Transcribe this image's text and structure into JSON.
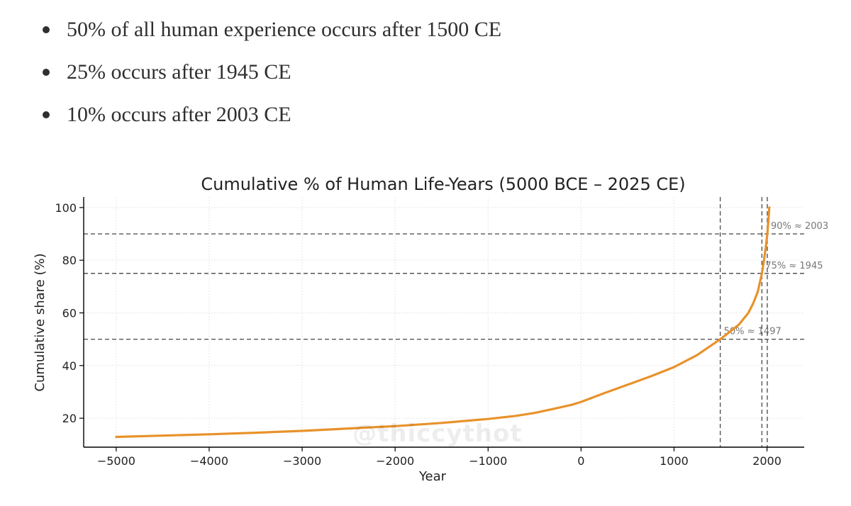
{
  "bullets": [
    "50% of all human experience occurs after 1500 CE",
    "25% occurs after 1945 CE",
    "10% occurs after 2003 CE"
  ],
  "watermark": "@thiccythot",
  "colors": {
    "line": "#e8922a",
    "reference": "#555555",
    "annotation": "#777777",
    "grid": "#e6e6e6",
    "text": "#222222",
    "bullet_text": "#2f2f2f"
  },
  "chart_data": {
    "type": "line",
    "title": "Cumulative % of Human Life-Years (5000 BCE – 2025 CE)",
    "xlabel": "Year",
    "ylabel": "Cumulative share (%)",
    "xlim": [
      -5350,
      2400
    ],
    "ylim": [
      9,
      104
    ],
    "xticks": [
      -5000,
      -4000,
      -3000,
      -2000,
      -1000,
      0,
      1000,
      2000
    ],
    "xtick_labels": [
      "−5000",
      "−4000",
      "−3000",
      "−2000",
      "−1000",
      "0",
      "1000",
      "2000"
    ],
    "yticks": [
      20,
      40,
      60,
      80,
      100
    ],
    "ytick_labels": [
      "20",
      "40",
      "60",
      "80",
      "100"
    ],
    "grid": true,
    "series": [
      {
        "x": [
          -5000,
          -4500,
          -4000,
          -3500,
          -3000,
          -2500,
          -2000,
          -1500,
          -1000,
          -700,
          -500,
          -300,
          -100,
          0,
          250,
          500,
          750,
          1000,
          1250,
          1497,
          1600,
          1700,
          1800,
          1850,
          1900,
          1945,
          1970,
          1990,
          2003,
          2015,
          2025
        ],
        "y": [
          12.9,
          13.4,
          13.9,
          14.5,
          15.2,
          16.1,
          17.0,
          18.2,
          19.7,
          20.9,
          22.0,
          23.5,
          25.1,
          26.2,
          29.5,
          32.7,
          35.9,
          39.4,
          44.0,
          50.0,
          52.8,
          55.6,
          60.0,
          63.5,
          68.0,
          75.0,
          80.5,
          86.0,
          90.0,
          95.0,
          100.0
        ]
      }
    ],
    "reference_lines": [
      {
        "axis": "y",
        "value": 50,
        "label": "50% ≈ 1497"
      },
      {
        "axis": "y",
        "value": 75,
        "label": "75% ≈ 1945"
      },
      {
        "axis": "y",
        "value": 90,
        "label": "90% ≈ 2003"
      },
      {
        "axis": "x",
        "value": 1497
      },
      {
        "axis": "x",
        "value": 1945
      },
      {
        "axis": "x",
        "value": 2003
      }
    ]
  }
}
